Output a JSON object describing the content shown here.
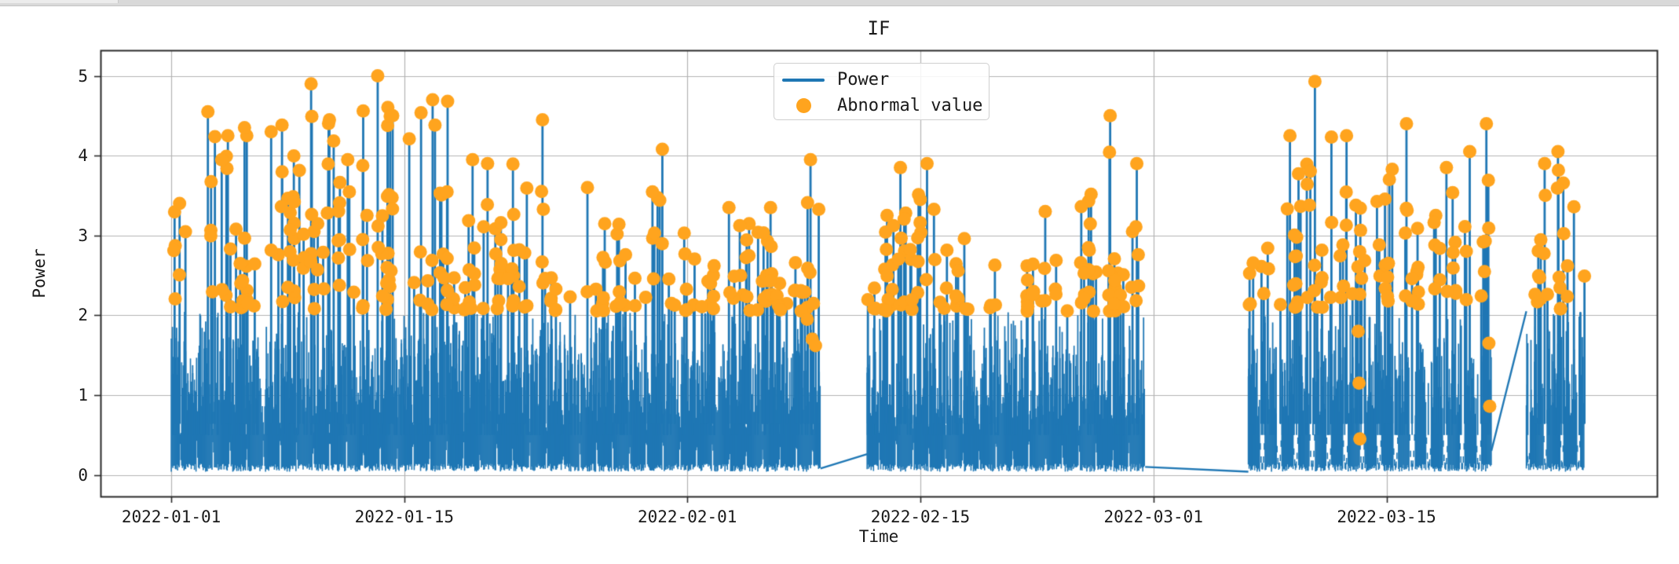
{
  "window_chrome": {
    "strip_color": "#d9d9d9",
    "tab_color": "#ececec"
  },
  "chart_data": {
    "type": "line+scatter",
    "title": "IF",
    "xlabel": "Time",
    "ylabel": "Power",
    "legend": {
      "position": "upper center",
      "entries": [
        {
          "label": "Power",
          "type": "line",
          "color": "#1f77b4"
        },
        {
          "label": "Abnormal value",
          "type": "dot",
          "color": "#ffa41e"
        }
      ]
    },
    "axes": {
      "x_ticks": [
        {
          "label": "2022-01-01",
          "day": 0
        },
        {
          "label": "2022-01-15",
          "day": 14
        },
        {
          "label": "2022-02-01",
          "day": 31
        },
        {
          "label": "2022-02-15",
          "day": 45
        },
        {
          "label": "2022-03-01",
          "day": 59
        },
        {
          "label": "2022-03-15",
          "day": 73
        }
      ],
      "y_ticks": [
        {
          "label": "0",
          "value": 0
        },
        {
          "label": "1",
          "value": 1
        },
        {
          "label": "2",
          "value": 2
        },
        {
          "label": "3",
          "value": 3
        },
        {
          "label": "4",
          "value": 4
        },
        {
          "label": "5",
          "value": 5
        }
      ],
      "xlim_days": [
        -4.25,
        89.25
      ],
      "ylim": [
        -0.27,
        5.32
      ],
      "grid": true,
      "grid_color": "#b3b3b3",
      "spine_color": "#2b2b2b",
      "text_color": "#1a1a1a"
    },
    "series": {
      "power": {
        "label": "Power",
        "color": "#1f77b4",
        "baseline_band": [
          0.05,
          1.75
        ],
        "segments": [
          {
            "start_day": 0.0,
            "end_day": 39.0,
            "solid_top": 1.08,
            "fuzz_top": 1.72,
            "fuzz_prob": 0.4,
            "spikes_per_day": 2.6,
            "valley_style": "shallow",
            "valley_width": 0.09
          },
          {
            "start_day": 41.8,
            "end_day": 58.5,
            "solid_top": 1.0,
            "fuzz_top": 1.62,
            "fuzz_prob": 0.24,
            "spikes_per_day": 2.3,
            "valley_style": "shallow",
            "valley_width": 0.1
          },
          {
            "start_day": 64.7,
            "end_day": 79.3,
            "solid_top": 1.05,
            "fuzz_top": 1.62,
            "fuzz_prob": 0.32,
            "spikes_per_day": 2.7,
            "valley_style": "deep",
            "valley_width": 0.3
          },
          {
            "start_day": 81.4,
            "end_day": 84.9,
            "solid_top": 1.02,
            "fuzz_top": 1.58,
            "fuzz_prob": 0.32,
            "spikes_per_day": 2.3,
            "valley_style": "deep",
            "valley_width": 0.18
          }
        ],
        "gap_connectors": [
          [
            39.0,
            0.08,
            41.8,
            0.26
          ],
          [
            58.5,
            0.1,
            64.7,
            0.04
          ],
          [
            79.3,
            0.3,
            81.4,
            2.05
          ]
        ],
        "peak_envelope": [
          [
            0,
            3.4
          ],
          [
            2,
            4.5
          ],
          [
            8.4,
            4.9
          ],
          [
            12.4,
            5.0
          ],
          [
            15.7,
            4.7
          ],
          [
            19,
            3.9
          ],
          [
            22.3,
            4.45
          ],
          [
            26,
            3.4
          ],
          [
            29.5,
            4.08
          ],
          [
            33,
            3.3
          ],
          [
            36,
            3.3
          ],
          [
            39,
            3.95
          ],
          [
            41.8,
            3.4
          ],
          [
            44,
            3.9
          ],
          [
            47,
            3.2
          ],
          [
            50,
            2.9
          ],
          [
            52,
            2.6
          ],
          [
            54,
            3.2
          ],
          [
            56.4,
            4.5
          ],
          [
            58.5,
            3.9
          ],
          [
            64.7,
            3.4
          ],
          [
            67.2,
            4.25
          ],
          [
            68.7,
            4.93
          ],
          [
            70.6,
            4.25
          ],
          [
            72,
            3.5
          ],
          [
            74.2,
            4.4
          ],
          [
            76,
            3.5
          ],
          [
            78,
            4.05
          ],
          [
            79.2,
            4.4
          ],
          [
            81.4,
            3.3
          ],
          [
            82.5,
            3.9
          ],
          [
            83.5,
            4.05
          ],
          [
            84.9,
            3.3
          ]
        ],
        "notable_peaks": [
          [
            0.5,
            3.4
          ],
          [
            2.2,
            4.55
          ],
          [
            3.4,
            4.25
          ],
          [
            4.4,
            4.35
          ],
          [
            6.0,
            4.3
          ],
          [
            8.4,
            4.9
          ],
          [
            9.5,
            4.45
          ],
          [
            10.6,
            3.95
          ],
          [
            12.4,
            5.0
          ],
          [
            13.3,
            4.5
          ],
          [
            15.7,
            4.7
          ],
          [
            16.6,
            4.68
          ],
          [
            18.1,
            3.95
          ],
          [
            19.0,
            3.9
          ],
          [
            22.3,
            4.45
          ],
          [
            25.0,
            3.6
          ],
          [
            29.5,
            4.08
          ],
          [
            33.5,
            3.35
          ],
          [
            36.0,
            3.35
          ],
          [
            38.4,
            3.95
          ],
          [
            43.8,
            3.85
          ],
          [
            45.4,
            3.9
          ],
          [
            52.5,
            3.3
          ],
          [
            56.4,
            4.5
          ],
          [
            58.0,
            3.9
          ],
          [
            67.2,
            4.25
          ],
          [
            68.7,
            4.93
          ],
          [
            70.6,
            4.25
          ],
          [
            74.2,
            4.4
          ],
          [
            76.6,
            3.85
          ],
          [
            78.0,
            4.05
          ],
          [
            79.0,
            4.4
          ],
          [
            82.5,
            3.9
          ],
          [
            83.3,
            4.05
          ]
        ]
      },
      "abnormal": {
        "label": "Abnormal value",
        "color": "#ffa41e",
        "dot_radius_px": 8.5,
        "detection_band": [
          2.03,
          3.65
        ],
        "low_outliers": [
          [
            38.2,
            1.95
          ],
          [
            38.5,
            1.7
          ],
          [
            38.7,
            1.62
          ],
          [
            71.3,
            1.8
          ],
          [
            71.35,
            1.15
          ],
          [
            71.4,
            0.45
          ],
          [
            79.15,
            1.65
          ],
          [
            79.2,
            0.86
          ]
        ]
      }
    },
    "generation": {
      "seed": 7,
      "sample_step_days": 0.048,
      "medium_spikes_per_day": 8,
      "standalone_dot_spikes_per_day": 1.0,
      "extra_dots_weights": [
        0.3,
        0.4,
        0.25,
        0.05
      ]
    }
  }
}
